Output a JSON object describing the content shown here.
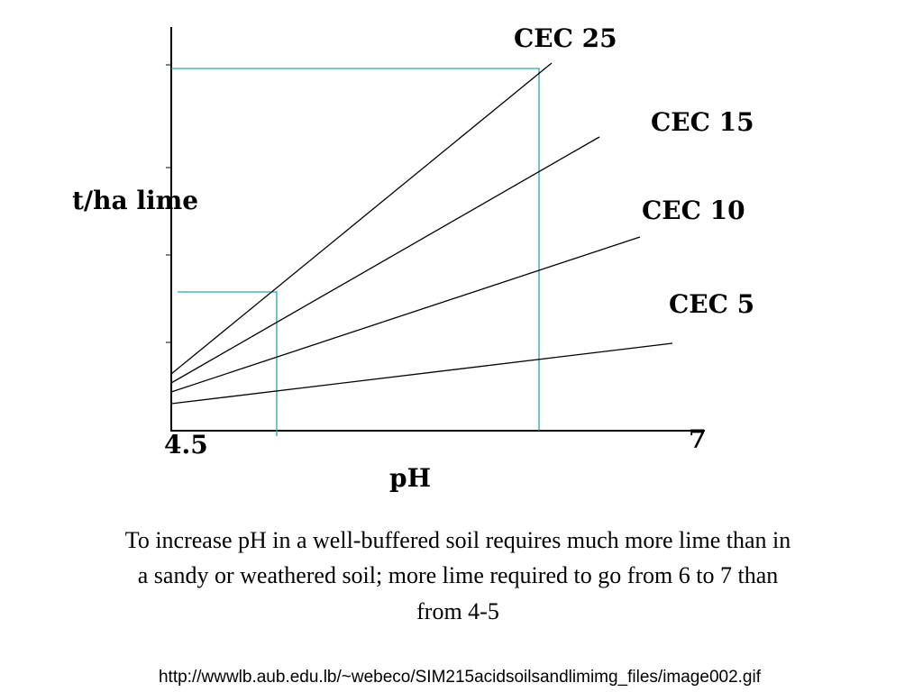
{
  "graph": {
    "y_axis_label": "t/ha lime",
    "x_axis_label": "pH",
    "x_start": "4.5",
    "x_end": "7",
    "curves": [
      {
        "label": "CEC 25"
      },
      {
        "label": "CEC 15"
      },
      {
        "label": "CEC 10"
      },
      {
        "label": "CEC 5"
      }
    ]
  },
  "caption": {
    "lines": [
      "To increase pH in a well-buffered soil requires much more lime than in",
      "a sandy or weathered soil; more lime required to go from 6 to 7 than",
      "from 4-5"
    ]
  },
  "source": "http://wwwlb.aub.edu.lb/~webeco/SIM215acidsoilsandlimimg_files/image002.gif"
}
